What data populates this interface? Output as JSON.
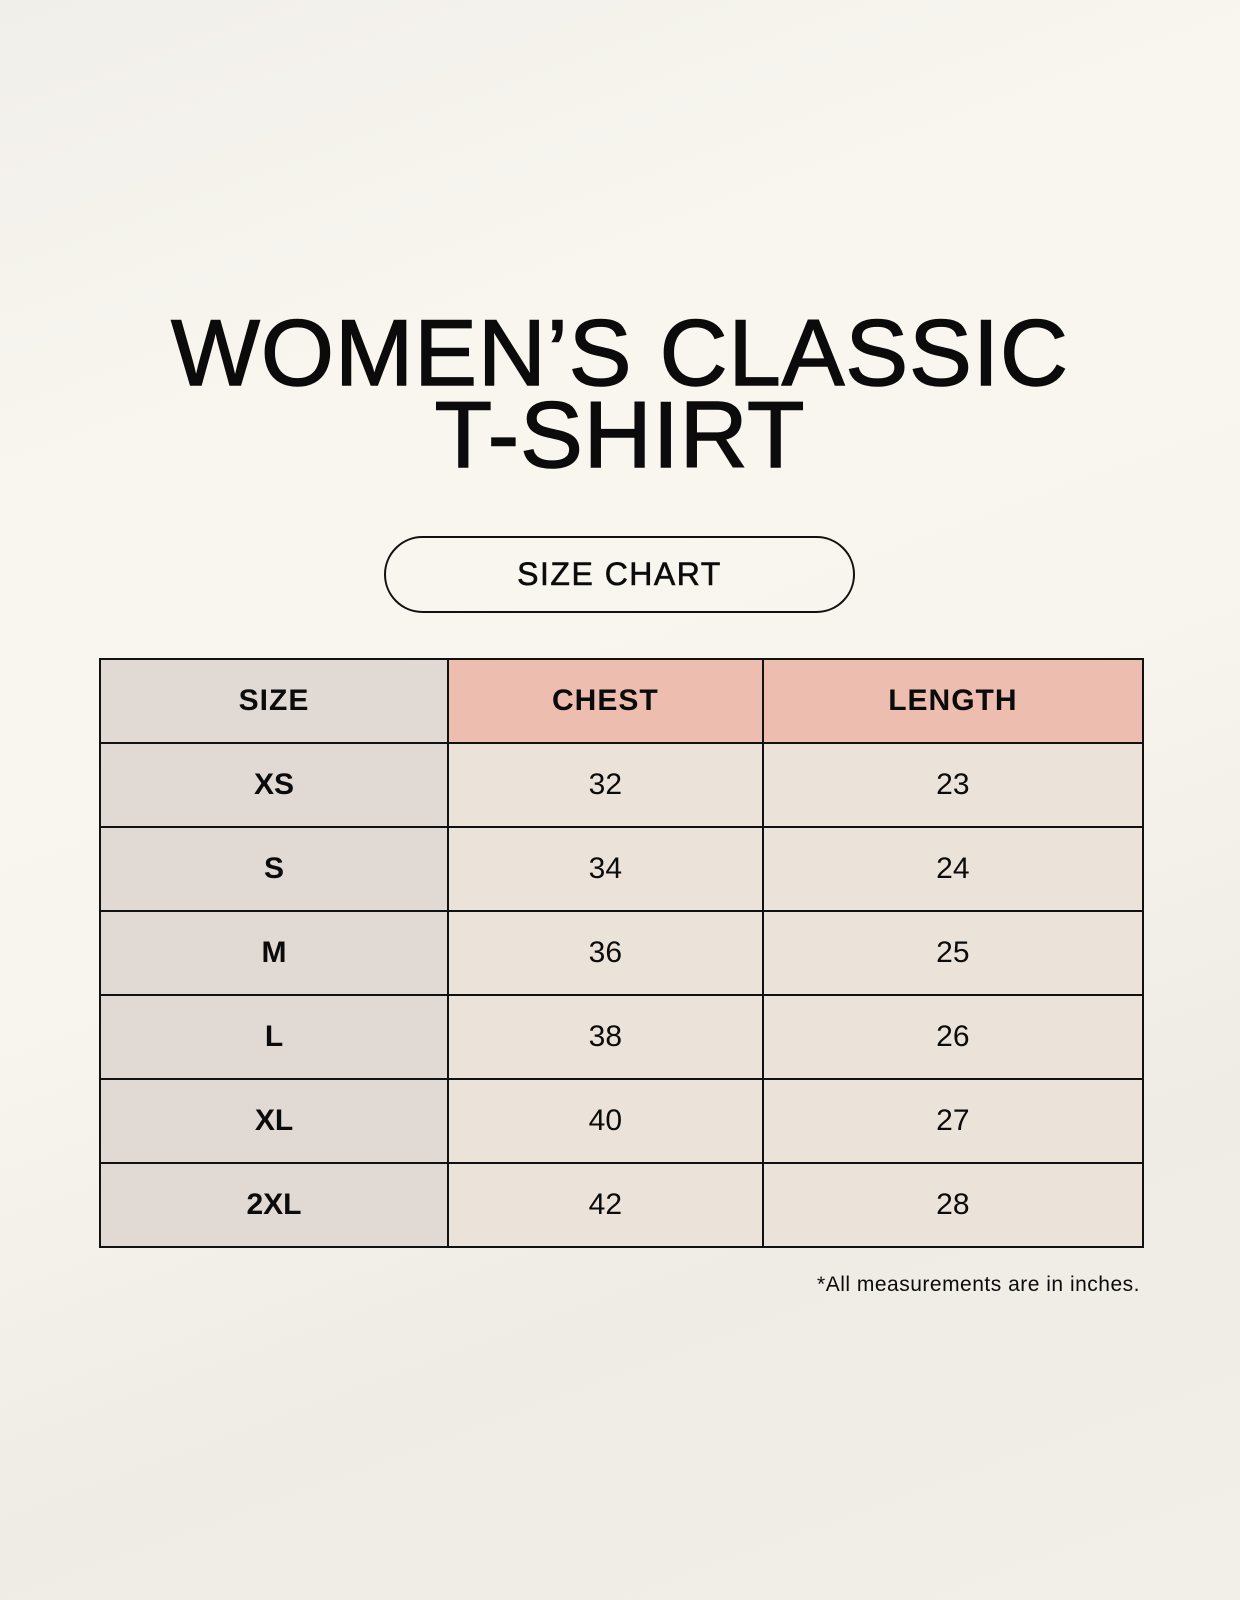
{
  "title_lines": [
    "WOMEN’S CLASSIC",
    "T-SHIRT"
  ],
  "subtitle": "SIZE CHART",
  "table": {
    "headers": [
      "SIZE",
      "CHEST",
      "LENGTH"
    ],
    "rows": [
      [
        "XS",
        "32",
        "23"
      ],
      [
        "S",
        "34",
        "24"
      ],
      [
        "M",
        "36",
        "25"
      ],
      [
        "L",
        "38",
        "26"
      ],
      [
        "XL",
        "40",
        "27"
      ],
      [
        "2XL",
        "42",
        "28"
      ]
    ]
  },
  "note": "*All measurements are in inches.",
  "colors": {
    "size_column": "#e1d9d4",
    "header_accent": "#edbdb0",
    "cell": "#ebe3d9"
  }
}
